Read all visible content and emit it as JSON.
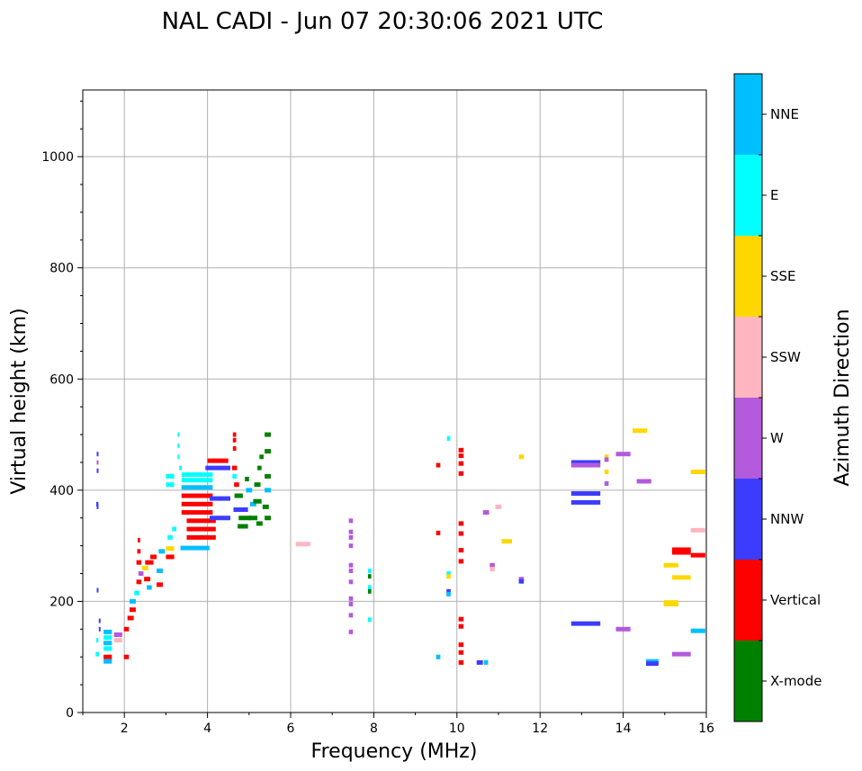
{
  "chart_data": {
    "type": "scatter",
    "title": "NAL CADI - Jun 07 20:30:06 2021 UTC",
    "xlabel": "Frequency (MHz)",
    "ylabel": "Virtual height (km)",
    "xlim": [
      1,
      16
    ],
    "ylim": [
      0,
      1120
    ],
    "x_ticks": [
      2,
      4,
      6,
      8,
      10,
      12,
      14,
      16
    ],
    "y_ticks": [
      0,
      200,
      400,
      600,
      800,
      1000
    ],
    "grid": true,
    "colorbar": {
      "title": "Azimuth Direction",
      "categories": [
        {
          "label": "X-mode",
          "color": "#008000"
        },
        {
          "label": "Vertical",
          "color": "#ff0000"
        },
        {
          "label": "NNW",
          "color": "#3c3cff"
        },
        {
          "label": "W",
          "color": "#b45adc"
        },
        {
          "label": "SSW",
          "color": "#ffb6c1"
        },
        {
          "label": "SSE",
          "color": "#ffd700"
        },
        {
          "label": "E",
          "color": "#00ffff"
        },
        {
          "label": "NNE",
          "color": "#00bfff"
        }
      ]
    },
    "echoes": [
      {
        "f": 1.35,
        "h": 465,
        "w": 0.03,
        "dir": "NNW"
      },
      {
        "f": 1.35,
        "h": 450,
        "w": 0.03,
        "dir": "W"
      },
      {
        "f": 1.35,
        "h": 435,
        "w": 0.03,
        "dir": "NNW"
      },
      {
        "f": 1.35,
        "h": 375,
        "w": 0.05,
        "dir": "NNW"
      },
      {
        "f": 1.35,
        "h": 370,
        "w": 0.03,
        "dir": "NNW"
      },
      {
        "f": 1.35,
        "h": 220,
        "w": 0.03,
        "dir": "NNW"
      },
      {
        "f": 1.4,
        "h": 165,
        "w": 0.03,
        "dir": "NNW"
      },
      {
        "f": 1.4,
        "h": 150,
        "w": 0.03,
        "dir": "NNW"
      },
      {
        "f": 1.35,
        "h": 130,
        "w": 0.05,
        "dir": "E"
      },
      {
        "f": 1.35,
        "h": 105,
        "w": 0.08,
        "dir": "E"
      },
      {
        "f": 1.6,
        "h": 145,
        "w": 0.2,
        "dir": "NNE"
      },
      {
        "f": 1.6,
        "h": 135,
        "w": 0.2,
        "dir": "E"
      },
      {
        "f": 1.6,
        "h": 125,
        "w": 0.2,
        "dir": "NNE"
      },
      {
        "f": 1.6,
        "h": 115,
        "w": 0.2,
        "dir": "E"
      },
      {
        "f": 1.6,
        "h": 100,
        "w": 0.2,
        "dir": "Vertical"
      },
      {
        "f": 1.6,
        "h": 92,
        "w": 0.2,
        "dir": "NNE"
      },
      {
        "f": 1.85,
        "h": 140,
        "w": 0.2,
        "dir": "W"
      },
      {
        "f": 1.85,
        "h": 130,
        "w": 0.2,
        "dir": "SSW"
      },
      {
        "f": 2.05,
        "h": 100,
        "w": 0.12,
        "dir": "Vertical"
      },
      {
        "f": 2.05,
        "h": 150,
        "w": 0.12,
        "dir": "Vertical"
      },
      {
        "f": 2.15,
        "h": 170,
        "w": 0.15,
        "dir": "Vertical"
      },
      {
        "f": 2.2,
        "h": 185,
        "w": 0.15,
        "dir": "Vertical"
      },
      {
        "f": 2.2,
        "h": 200,
        "w": 0.15,
        "dir": "NNE"
      },
      {
        "f": 2.3,
        "h": 215,
        "w": 0.12,
        "dir": "E"
      },
      {
        "f": 2.35,
        "h": 235,
        "w": 0.12,
        "dir": "Vertical"
      },
      {
        "f": 2.4,
        "h": 250,
        "w": 0.12,
        "dir": "W"
      },
      {
        "f": 2.35,
        "h": 270,
        "w": 0.12,
        "dir": "Vertical"
      },
      {
        "f": 2.35,
        "h": 290,
        "w": 0.08,
        "dir": "Vertical"
      },
      {
        "f": 2.35,
        "h": 310,
        "w": 0.06,
        "dir": "Vertical"
      },
      {
        "f": 2.5,
        "h": 260,
        "w": 0.15,
        "dir": "SSE"
      },
      {
        "f": 2.55,
        "h": 240,
        "w": 0.15,
        "dir": "Vertical"
      },
      {
        "f": 2.6,
        "h": 225,
        "w": 0.12,
        "dir": "NNE"
      },
      {
        "f": 2.6,
        "h": 270,
        "w": 0.2,
        "dir": "Vertical"
      },
      {
        "f": 2.7,
        "h": 280,
        "w": 0.15,
        "dir": "Vertical"
      },
      {
        "f": 2.85,
        "h": 255,
        "w": 0.15,
        "dir": "NNE"
      },
      {
        "f": 2.85,
        "h": 230,
        "w": 0.15,
        "dir": "Vertical"
      },
      {
        "f": 2.9,
        "h": 290,
        "w": 0.15,
        "dir": "NNE"
      },
      {
        "f": 3.1,
        "h": 280,
        "w": 0.2,
        "dir": "Vertical"
      },
      {
        "f": 3.1,
        "h": 295,
        "w": 0.2,
        "dir": "SSE"
      },
      {
        "f": 3.1,
        "h": 315,
        "w": 0.12,
        "dir": "E"
      },
      {
        "f": 3.2,
        "h": 330,
        "w": 0.1,
        "dir": "E"
      },
      {
        "f": 3.1,
        "h": 410,
        "w": 0.2,
        "dir": "E"
      },
      {
        "f": 3.1,
        "h": 425,
        "w": 0.2,
        "dir": "E"
      },
      {
        "f": 3.3,
        "h": 500,
        "w": 0.04,
        "dir": "E"
      },
      {
        "f": 3.3,
        "h": 480,
        "w": 0.04,
        "dir": "E"
      },
      {
        "f": 3.3,
        "h": 460,
        "w": 0.04,
        "dir": "E"
      },
      {
        "f": 3.35,
        "h": 440,
        "w": 0.06,
        "dir": "E"
      },
      {
        "f": 3.7,
        "h": 296,
        "w": 0.7,
        "dir": "NNE"
      },
      {
        "f": 3.85,
        "h": 315,
        "w": 0.7,
        "dir": "Vertical"
      },
      {
        "f": 3.85,
        "h": 330,
        "w": 0.7,
        "dir": "Vertical"
      },
      {
        "f": 3.85,
        "h": 345,
        "w": 0.7,
        "dir": "Vertical"
      },
      {
        "f": 3.75,
        "h": 360,
        "w": 0.75,
        "dir": "Vertical"
      },
      {
        "f": 3.75,
        "h": 375,
        "w": 0.75,
        "dir": "Vertical"
      },
      {
        "f": 3.75,
        "h": 390,
        "w": 0.75,
        "dir": "Vertical"
      },
      {
        "f": 3.75,
        "h": 405,
        "w": 0.75,
        "dir": "NNE"
      },
      {
        "f": 3.75,
        "h": 418,
        "w": 0.75,
        "dir": "E"
      },
      {
        "f": 3.75,
        "h": 428,
        "w": 0.75,
        "dir": "E"
      },
      {
        "f": 4.25,
        "h": 440,
        "w": 0.6,
        "dir": "NNW"
      },
      {
        "f": 4.25,
        "h": 453,
        "w": 0.5,
        "dir": "Vertical"
      },
      {
        "f": 4.3,
        "h": 350,
        "w": 0.5,
        "dir": "NNW"
      },
      {
        "f": 4.3,
        "h": 385,
        "w": 0.5,
        "dir": "NNW"
      },
      {
        "f": 4.65,
        "h": 500,
        "w": 0.08,
        "dir": "Vertical"
      },
      {
        "f": 4.65,
        "h": 490,
        "w": 0.08,
        "dir": "Vertical"
      },
      {
        "f": 4.65,
        "h": 475,
        "w": 0.08,
        "dir": "Vertical"
      },
      {
        "f": 4.65,
        "h": 440,
        "w": 0.12,
        "dir": "Vertical"
      },
      {
        "f": 4.65,
        "h": 425,
        "w": 0.1,
        "dir": "E"
      },
      {
        "f": 4.7,
        "h": 410,
        "w": 0.12,
        "dir": "Vertical"
      },
      {
        "f": 4.75,
        "h": 390,
        "w": 0.2,
        "dir": "X-mode"
      },
      {
        "f": 4.8,
        "h": 365,
        "w": 0.35,
        "dir": "NNW"
      },
      {
        "f": 4.9,
        "h": 350,
        "w": 0.3,
        "dir": "X-mode"
      },
      {
        "f": 4.85,
        "h": 335,
        "w": 0.25,
        "dir": "X-mode"
      },
      {
        "f": 4.95,
        "h": 420,
        "w": 0.1,
        "dir": "X-mode"
      },
      {
        "f": 5.0,
        "h": 400,
        "w": 0.15,
        "dir": "NNE"
      },
      {
        "f": 5.1,
        "h": 375,
        "w": 0.15,
        "dir": "NNE"
      },
      {
        "f": 5.1,
        "h": 350,
        "w": 0.2,
        "dir": "X-mode"
      },
      {
        "f": 5.2,
        "h": 380,
        "w": 0.2,
        "dir": "X-mode"
      },
      {
        "f": 5.2,
        "h": 410,
        "w": 0.15,
        "dir": "X-mode"
      },
      {
        "f": 5.25,
        "h": 440,
        "w": 0.1,
        "dir": "X-mode"
      },
      {
        "f": 5.3,
        "h": 460,
        "w": 0.1,
        "dir": "X-mode"
      },
      {
        "f": 5.25,
        "h": 340,
        "w": 0.15,
        "dir": "X-mode"
      },
      {
        "f": 5.4,
        "h": 370,
        "w": 0.15,
        "dir": "X-mode"
      },
      {
        "f": 5.45,
        "h": 400,
        "w": 0.15,
        "dir": "NNE"
      },
      {
        "f": 5.45,
        "h": 425,
        "w": 0.15,
        "dir": "X-mode"
      },
      {
        "f": 5.45,
        "h": 470,
        "w": 0.15,
        "dir": "X-mode"
      },
      {
        "f": 5.45,
        "h": 500,
        "w": 0.15,
        "dir": "X-mode"
      },
      {
        "f": 5.45,
        "h": 350,
        "w": 0.15,
        "dir": "X-mode"
      },
      {
        "f": 6.3,
        "h": 303,
        "w": 0.35,
        "dir": "SSW"
      },
      {
        "f": 7.45,
        "h": 345,
        "w": 0.1,
        "dir": "W"
      },
      {
        "f": 7.45,
        "h": 325,
        "w": 0.1,
        "dir": "W"
      },
      {
        "f": 7.45,
        "h": 315,
        "w": 0.1,
        "dir": "W"
      },
      {
        "f": 7.45,
        "h": 300,
        "w": 0.1,
        "dir": "W"
      },
      {
        "f": 7.45,
        "h": 265,
        "w": 0.1,
        "dir": "W"
      },
      {
        "f": 7.45,
        "h": 255,
        "w": 0.1,
        "dir": "W"
      },
      {
        "f": 7.45,
        "h": 235,
        "w": 0.1,
        "dir": "W"
      },
      {
        "f": 7.45,
        "h": 205,
        "w": 0.1,
        "dir": "W"
      },
      {
        "f": 7.45,
        "h": 195,
        "w": 0.1,
        "dir": "W"
      },
      {
        "f": 7.45,
        "h": 175,
        "w": 0.1,
        "dir": "W"
      },
      {
        "f": 7.45,
        "h": 145,
        "w": 0.1,
        "dir": "W"
      },
      {
        "f": 7.9,
        "h": 255,
        "w": 0.08,
        "dir": "E"
      },
      {
        "f": 7.9,
        "h": 245,
        "w": 0.08,
        "dir": "X-mode"
      },
      {
        "f": 7.9,
        "h": 225,
        "w": 0.08,
        "dir": "E"
      },
      {
        "f": 7.9,
        "h": 218,
        "w": 0.08,
        "dir": "X-mode"
      },
      {
        "f": 7.9,
        "h": 167,
        "w": 0.08,
        "dir": "E"
      },
      {
        "f": 9.55,
        "h": 445,
        "w": 0.1,
        "dir": "Vertical"
      },
      {
        "f": 9.55,
        "h": 323,
        "w": 0.1,
        "dir": "Vertical"
      },
      {
        "f": 9.55,
        "h": 100,
        "w": 0.1,
        "dir": "NNE"
      },
      {
        "f": 9.8,
        "h": 493,
        "w": 0.08,
        "dir": "E"
      },
      {
        "f": 9.8,
        "h": 250,
        "w": 0.1,
        "dir": "E"
      },
      {
        "f": 9.8,
        "h": 245,
        "w": 0.1,
        "dir": "SSE"
      },
      {
        "f": 9.8,
        "h": 218,
        "w": 0.1,
        "dir": "NNW"
      },
      {
        "f": 9.8,
        "h": 213,
        "w": 0.1,
        "dir": "NNE"
      },
      {
        "f": 10.1,
        "h": 472,
        "w": 0.12,
        "dir": "Vertical"
      },
      {
        "f": 10.1,
        "h": 462,
        "w": 0.12,
        "dir": "Vertical"
      },
      {
        "f": 10.1,
        "h": 448,
        "w": 0.12,
        "dir": "Vertical"
      },
      {
        "f": 10.1,
        "h": 430,
        "w": 0.12,
        "dir": "Vertical"
      },
      {
        "f": 10.1,
        "h": 340,
        "w": 0.12,
        "dir": "Vertical"
      },
      {
        "f": 10.1,
        "h": 322,
        "w": 0.12,
        "dir": "Vertical"
      },
      {
        "f": 10.1,
        "h": 292,
        "w": 0.12,
        "dir": "Vertical"
      },
      {
        "f": 10.1,
        "h": 272,
        "w": 0.12,
        "dir": "Vertical"
      },
      {
        "f": 10.1,
        "h": 168,
        "w": 0.12,
        "dir": "Vertical"
      },
      {
        "f": 10.1,
        "h": 155,
        "w": 0.12,
        "dir": "Vertical"
      },
      {
        "f": 10.1,
        "h": 122,
        "w": 0.12,
        "dir": "Vertical"
      },
      {
        "f": 10.1,
        "h": 108,
        "w": 0.12,
        "dir": "Vertical"
      },
      {
        "f": 10.1,
        "h": 90,
        "w": 0.12,
        "dir": "Vertical"
      },
      {
        "f": 10.55,
        "h": 90,
        "w": 0.15,
        "dir": "NNW"
      },
      {
        "f": 10.7,
        "h": 90,
        "w": 0.1,
        "dir": "NNE"
      },
      {
        "f": 10.7,
        "h": 360,
        "w": 0.15,
        "dir": "W"
      },
      {
        "f": 10.85,
        "h": 265,
        "w": 0.12,
        "dir": "W"
      },
      {
        "f": 10.85,
        "h": 258,
        "w": 0.12,
        "dir": "SSW"
      },
      {
        "f": 11.0,
        "h": 370,
        "w": 0.15,
        "dir": "SSW"
      },
      {
        "f": 11.2,
        "h": 308,
        "w": 0.25,
        "dir": "SSE"
      },
      {
        "f": 11.55,
        "h": 460,
        "w": 0.12,
        "dir": "SSE"
      },
      {
        "f": 11.55,
        "h": 240,
        "w": 0.12,
        "dir": "W"
      },
      {
        "f": 11.55,
        "h": 236,
        "w": 0.12,
        "dir": "NNW"
      },
      {
        "f": 13.1,
        "h": 450,
        "w": 0.7,
        "dir": "NNW"
      },
      {
        "f": 13.1,
        "h": 445,
        "w": 0.7,
        "dir": "W"
      },
      {
        "f": 13.1,
        "h": 394,
        "w": 0.7,
        "dir": "NNW"
      },
      {
        "f": 13.1,
        "h": 378,
        "w": 0.7,
        "dir": "NNW"
      },
      {
        "f": 13.1,
        "h": 160,
        "w": 0.7,
        "dir": "NNW"
      },
      {
        "f": 13.6,
        "h": 460,
        "w": 0.1,
        "dir": "SSE"
      },
      {
        "f": 13.6,
        "h": 455,
        "w": 0.1,
        "dir": "W"
      },
      {
        "f": 13.6,
        "h": 433,
        "w": 0.1,
        "dir": "SSE"
      },
      {
        "f": 13.6,
        "h": 412,
        "w": 0.1,
        "dir": "W"
      },
      {
        "f": 14.0,
        "h": 465,
        "w": 0.35,
        "dir": "W"
      },
      {
        "f": 14.0,
        "h": 150,
        "w": 0.35,
        "dir": "W"
      },
      {
        "f": 14.4,
        "h": 507,
        "w": 0.35,
        "dir": "SSE"
      },
      {
        "f": 14.5,
        "h": 416,
        "w": 0.35,
        "dir": "W"
      },
      {
        "f": 14.7,
        "h": 92,
        "w": 0.3,
        "dir": "NNE"
      },
      {
        "f": 14.7,
        "h": 88,
        "w": 0.3,
        "dir": "NNW"
      },
      {
        "f": 15.15,
        "h": 265,
        "w": 0.35,
        "dir": "SSE"
      },
      {
        "f": 15.15,
        "h": 198,
        "w": 0.35,
        "dir": "SSE"
      },
      {
        "f": 15.15,
        "h": 195,
        "w": 0.35,
        "dir": "SSE"
      },
      {
        "f": 15.4,
        "h": 293,
        "w": 0.45,
        "dir": "Vertical"
      },
      {
        "f": 15.4,
        "h": 288,
        "w": 0.45,
        "dir": "Vertical"
      },
      {
        "f": 15.4,
        "h": 243,
        "w": 0.45,
        "dir": "SSE"
      },
      {
        "f": 15.4,
        "h": 105,
        "w": 0.45,
        "dir": "W"
      },
      {
        "f": 15.8,
        "h": 433,
        "w": 0.35,
        "dir": "SSE"
      },
      {
        "f": 15.8,
        "h": 328,
        "w": 0.35,
        "dir": "SSW"
      },
      {
        "f": 15.8,
        "h": 283,
        "w": 0.35,
        "dir": "Vertical"
      },
      {
        "f": 15.8,
        "h": 147,
        "w": 0.35,
        "dir": "NNE"
      }
    ]
  }
}
